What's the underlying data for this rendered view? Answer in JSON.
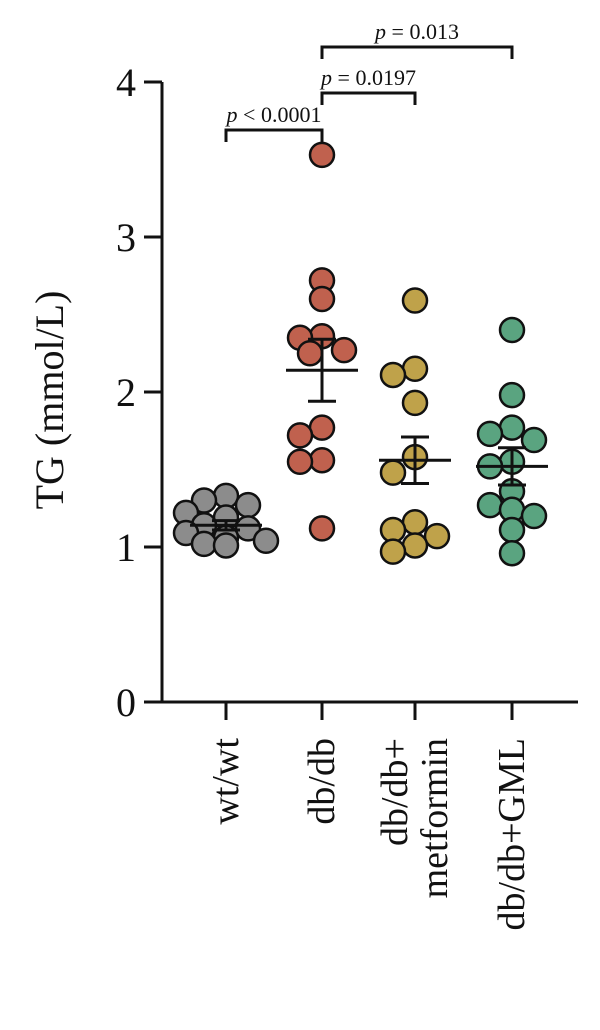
{
  "chart_data": {
    "type": "scatter",
    "ylabel": "TG (mmol/L)",
    "xlabel": "",
    "ylim": [
      0,
      4
    ],
    "yticks": [
      "0",
      "1",
      "2",
      "3",
      "4"
    ],
    "groups": [
      {
        "label_lines": [
          "wt/wt"
        ],
        "color": "#8c8c8c",
        "values": [
          1.33,
          1.3,
          1.27,
          1.22,
          1.19,
          1.14,
          1.12,
          1.09,
          1.06,
          1.04,
          1.02,
          1.01
        ],
        "mean": 1.14,
        "sem": 0.03
      },
      {
        "label_lines": [
          "db/db"
        ],
        "color": "#c0614e",
        "values": [
          3.53,
          2.72,
          2.6,
          2.36,
          2.35,
          2.27,
          2.25,
          1.77,
          1.72,
          1.56,
          1.55,
          1.12
        ],
        "mean": 2.14,
        "sem": 0.2
      },
      {
        "label_lines": [
          "db/db+",
          "metformin"
        ],
        "color": "#bfa24a",
        "values": [
          2.59,
          2.15,
          2.11,
          1.93,
          1.58,
          1.48,
          1.16,
          1.11,
          1.07,
          1.01,
          0.97
        ],
        "mean": 1.56,
        "sem": 0.15
      },
      {
        "label_lines": [
          "db/db+GML"
        ],
        "color": "#5aa480",
        "values": [
          2.4,
          1.98,
          1.77,
          1.73,
          1.69,
          1.55,
          1.52,
          1.36,
          1.27,
          1.24,
          1.2,
          1.11,
          0.96
        ],
        "mean": 1.52,
        "sem": 0.12
      }
    ],
    "comparisons": [
      {
        "from": 0,
        "to": 1,
        "prefix": "p",
        "text": " < 0.0001"
      },
      {
        "from": 1,
        "to": 2,
        "prefix": "p",
        "text": " = 0.0197"
      },
      {
        "from": 1,
        "to": 3,
        "prefix": "p",
        "text": " = 0.013"
      }
    ]
  }
}
